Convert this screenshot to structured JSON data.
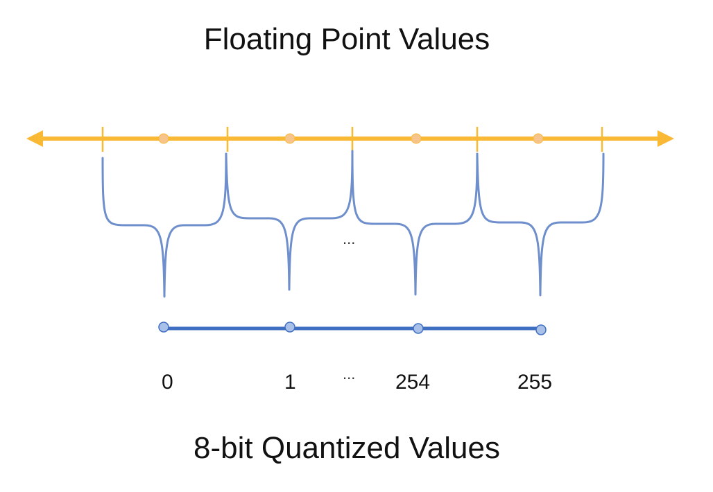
{
  "titles": {
    "top": "Floating Point Values",
    "bottom": "8-bit Quantized Values"
  },
  "colors": {
    "float_line": "#F9B935",
    "float_point": "#F7C58B",
    "bracket": "#6E8FCB",
    "quant_line": "#3F6FC1",
    "quant_point": "#A9C1E8"
  },
  "labels": {
    "quantized": [
      "0",
      "1",
      "254",
      "255"
    ],
    "ellipsis": "...",
    "ellipsis_bottom": "..."
  }
}
